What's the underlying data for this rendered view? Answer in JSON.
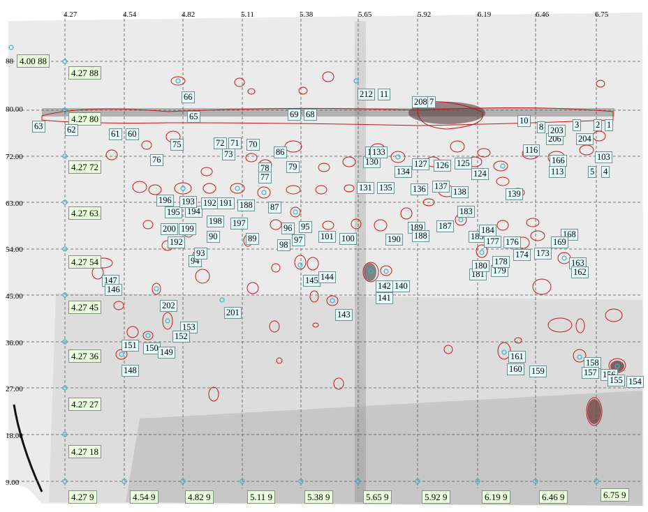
{
  "axes": {
    "pi_top": [
      "4.27",
      "4.54",
      "4.82",
      "5.11",
      "5.38",
      "5.65",
      "5.92",
      "6.19",
      "6.46",
      "6.75"
    ],
    "mw_left": [
      "88",
      "80.00",
      "72.00",
      "63.00",
      "54.00",
      "45.00",
      "36.00",
      "27.00",
      "18.00",
      "9.00"
    ]
  },
  "ref_labels": [
    "4.00 88",
    "4.27 88",
    "4.27 80",
    "4.27 72",
    "4.27 63",
    "4.27 54",
    "4.27 45",
    "4.27 36",
    "4.27 27",
    "4.27 18",
    "4.27 9",
    "4.54 9",
    "4.82 9",
    "5.11 9",
    "5.38 9",
    "5.65 9",
    "5.92 9",
    "6.19 9",
    "6.46 9",
    "6.75 9"
  ],
  "spot_labels": [
    "63",
    "62",
    "61",
    "60",
    "66",
    "65",
    "76",
    "75",
    "73",
    "70",
    "72",
    "71",
    "78",
    "77",
    "86",
    "79",
    "69",
    "68",
    "212",
    "11",
    "208",
    "7",
    "130",
    "132",
    "135",
    "136",
    "137",
    "138",
    "139",
    "125",
    "124",
    "127",
    "126",
    "116",
    "113",
    "166",
    "206",
    "204",
    "203",
    "103",
    "196",
    "195",
    "194",
    "193",
    "192",
    "191",
    "188",
    "87",
    "198",
    "197",
    "200",
    "199",
    "192",
    "90",
    "89",
    "96",
    "95",
    "98",
    "97",
    "101",
    "100",
    "190",
    "189",
    "188",
    "187",
    "185",
    "183",
    "184",
    "177",
    "176",
    "174",
    "173",
    "168",
    "169",
    "163",
    "162",
    "181",
    "180",
    "179",
    "178",
    "94",
    "93",
    "147",
    "146",
    "145",
    "144",
    "142",
    "140",
    "141",
    "143",
    "202",
    "201",
    "153",
    "152",
    "151",
    "150",
    "149",
    "148",
    "161",
    "160",
    "159",
    "158",
    "157",
    "156",
    "155",
    "154",
    "131",
    "133",
    "134",
    "10",
    "8",
    "5",
    "4",
    "3",
    "2",
    "1"
  ]
}
